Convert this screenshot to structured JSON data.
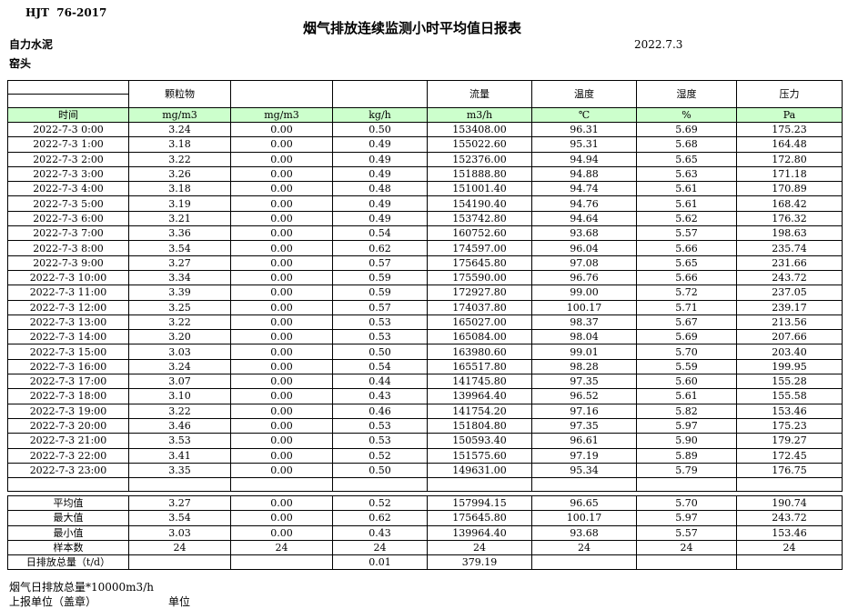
{
  "header": {
    "standard": "HJT  76-2017",
    "title": "烟气排放连续监测小时平均值日报表",
    "company": "自力水泥",
    "location": "窑头",
    "date": "2022.7.3"
  },
  "colors": {
    "header_green": "#ccffcc",
    "border": "#000000"
  },
  "table": {
    "group_headers": [
      "",
      "颗粒物",
      "",
      "",
      "流量",
      "温度",
      "湿度",
      "压力"
    ],
    "unit_headers": [
      "时间",
      "mg/m3",
      "mg/m3",
      "kg/h",
      "m3/h",
      "℃",
      "%",
      "Pa"
    ],
    "rows": [
      {
        "time": "2022-7-3 0:00",
        "values": [
          "3.24",
          "0.00",
          "0.50",
          "153408.00",
          "96.31",
          "5.69",
          "175.23"
        ]
      },
      {
        "time": "2022-7-3 1:00",
        "values": [
          "3.18",
          "0.00",
          "0.49",
          "155022.60",
          "95.31",
          "5.68",
          "164.48"
        ]
      },
      {
        "time": "2022-7-3 2:00",
        "values": [
          "3.22",
          "0.00",
          "0.49",
          "152376.00",
          "94.94",
          "5.65",
          "172.80"
        ]
      },
      {
        "time": "2022-7-3 3:00",
        "values": [
          "3.26",
          "0.00",
          "0.49",
          "151888.80",
          "94.88",
          "5.63",
          "171.18"
        ]
      },
      {
        "time": "2022-7-3 4:00",
        "values": [
          "3.18",
          "0.00",
          "0.48",
          "151001.40",
          "94.74",
          "5.61",
          "170.89"
        ]
      },
      {
        "time": "2022-7-3 5:00",
        "values": [
          "3.19",
          "0.00",
          "0.49",
          "154190.40",
          "94.76",
          "5.61",
          "168.42"
        ]
      },
      {
        "time": "2022-7-3 6:00",
        "values": [
          "3.21",
          "0.00",
          "0.49",
          "153742.80",
          "94.64",
          "5.62",
          "176.32"
        ]
      },
      {
        "time": "2022-7-3 7:00",
        "values": [
          "3.36",
          "0.00",
          "0.54",
          "160752.60",
          "93.68",
          "5.57",
          "198.63"
        ]
      },
      {
        "time": "2022-7-3 8:00",
        "values": [
          "3.54",
          "0.00",
          "0.62",
          "174597.00",
          "96.04",
          "5.66",
          "235.74"
        ]
      },
      {
        "time": "2022-7-3 9:00",
        "values": [
          "3.27",
          "0.00",
          "0.57",
          "175645.80",
          "97.08",
          "5.65",
          "231.66"
        ]
      },
      {
        "time": "2022-7-3 10:00",
        "values": [
          "3.34",
          "0.00",
          "0.59",
          "175590.00",
          "96.76",
          "5.66",
          "243.72"
        ]
      },
      {
        "time": "2022-7-3 11:00",
        "values": [
          "3.39",
          "0.00",
          "0.59",
          "172927.80",
          "99.00",
          "5.72",
          "237.05"
        ]
      },
      {
        "time": "2022-7-3 12:00",
        "values": [
          "3.25",
          "0.00",
          "0.57",
          "174037.80",
          "100.17",
          "5.71",
          "239.17"
        ]
      },
      {
        "time": "2022-7-3 13:00",
        "values": [
          "3.22",
          "0.00",
          "0.53",
          "165027.00",
          "98.37",
          "5.67",
          "213.56"
        ]
      },
      {
        "time": "2022-7-3 14:00",
        "values": [
          "3.20",
          "0.00",
          "0.53",
          "165084.00",
          "98.04",
          "5.69",
          "207.66"
        ]
      },
      {
        "time": "2022-7-3 15:00",
        "values": [
          "3.03",
          "0.00",
          "0.50",
          "163980.60",
          "99.01",
          "5.70",
          "203.40"
        ]
      },
      {
        "time": "2022-7-3 16:00",
        "values": [
          "3.24",
          "0.00",
          "0.54",
          "165517.80",
          "98.28",
          "5.59",
          "199.95"
        ]
      },
      {
        "time": "2022-7-3 17:00",
        "values": [
          "3.07",
          "0.00",
          "0.44",
          "141745.80",
          "97.35",
          "5.60",
          "155.28"
        ]
      },
      {
        "time": "2022-7-3 18:00",
        "values": [
          "3.10",
          "0.00",
          "0.43",
          "139964.40",
          "96.52",
          "5.61",
          "155.58"
        ]
      },
      {
        "time": "2022-7-3 19:00",
        "values": [
          "3.22",
          "0.00",
          "0.46",
          "141754.20",
          "97.16",
          "5.82",
          "153.46"
        ]
      },
      {
        "time": "2022-7-3 20:00",
        "values": [
          "3.46",
          "0.00",
          "0.53",
          "151804.80",
          "97.35",
          "5.97",
          "175.23"
        ]
      },
      {
        "time": "2022-7-3 21:00",
        "values": [
          "3.53",
          "0.00",
          "0.53",
          "150593.40",
          "96.61",
          "5.90",
          "179.27"
        ]
      },
      {
        "time": "2022-7-3 22:00",
        "values": [
          "3.41",
          "0.00",
          "0.52",
          "151575.60",
          "97.19",
          "5.89",
          "172.45"
        ]
      },
      {
        "time": "2022-7-3 23:00",
        "values": [
          "3.35",
          "0.00",
          "0.50",
          "149631.00",
          "95.34",
          "5.79",
          "176.75"
        ]
      }
    ],
    "summary": [
      {
        "label": "平均值",
        "values": [
          "3.27",
          "0.00",
          "0.52",
          "157994.15",
          "96.65",
          "5.70",
          "190.74"
        ]
      },
      {
        "label": "最大值",
        "values": [
          "3.54",
          "0.00",
          "0.62",
          "175645.80",
          "100.17",
          "5.97",
          "243.72"
        ]
      },
      {
        "label": "最小值",
        "values": [
          "3.03",
          "0.00",
          "0.43",
          "139964.40",
          "93.68",
          "5.57",
          "153.46"
        ]
      },
      {
        "label": "样本数",
        "values": [
          "24",
          "24",
          "24",
          "24",
          "24",
          "24",
          "24"
        ]
      },
      {
        "label": "日排放总量（t/d）",
        "values": [
          "",
          "",
          "0.01",
          "379.19",
          "",
          "",
          ""
        ]
      }
    ]
  },
  "footer": {
    "note": "烟气日排放总量*10000m3/h",
    "report_unit_label": "上报单位（盖章）",
    "unit_label": "单位"
  }
}
